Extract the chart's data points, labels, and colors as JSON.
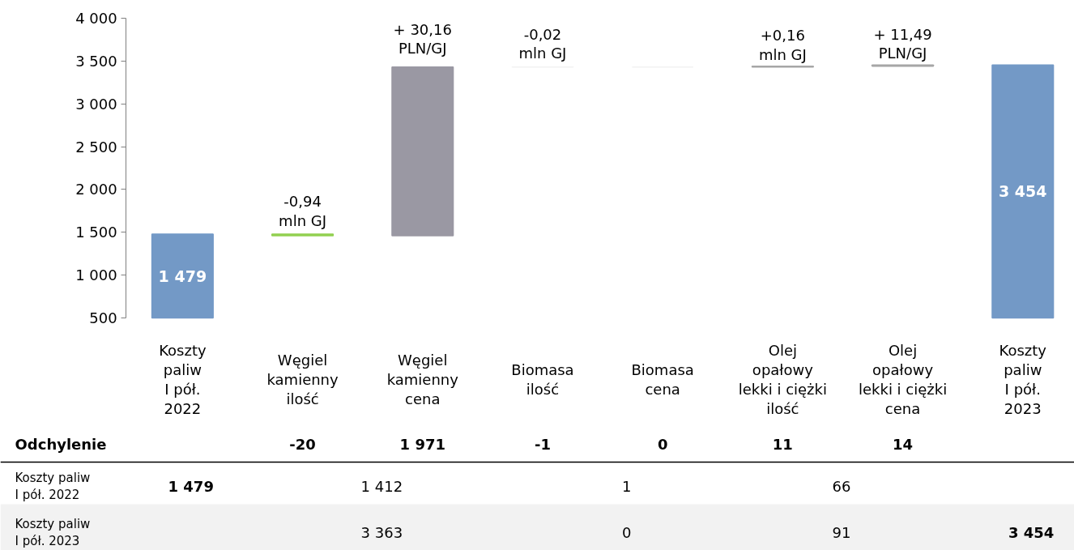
{
  "chart_data": {
    "type": "bar",
    "categories": [
      "Koszty\npaliw\nI pół.\n2022",
      "Węgiel\nkamienny\nilość",
      "Węgiel\nkamienny\ncena",
      "Biomasa\nilość",
      "Biomasa\ncena",
      "Olej\nopałowy\nlekki i ciężki\nilość",
      "Olej\nopałowy\nlekki i ciężki\ncena",
      "Koszty\npaliw\nI pół.\n2023"
    ],
    "values": [
      1479,
      -20,
      1971,
      -1,
      0,
      11,
      14,
      3454
    ],
    "base": [
      null,
      1479,
      1459,
      3430,
      3429,
      3429,
      3440,
      null
    ],
    "colors": [
      "#7399c6",
      "#92d050",
      "#9a98a3",
      "#f2f2f2",
      "#f2f2f2",
      "#a6a6a6",
      "#a6a6a6",
      "#7399c6"
    ],
    "value_labels": [
      "1 479",
      null,
      null,
      null,
      null,
      null,
      null,
      "3 454"
    ],
    "ylim": [
      500,
      4000
    ],
    "yticks": [
      {
        "value": 500,
        "label": "500"
      },
      {
        "value": 1000,
        "label": "1 000"
      },
      {
        "value": 1500,
        "label": "1 500"
      },
      {
        "value": 2000,
        "label": "2 000"
      },
      {
        "value": 2500,
        "label": "2 500"
      },
      {
        "value": 3000,
        "label": "3 000"
      },
      {
        "value": 3500,
        "label": "3 500"
      },
      {
        "value": 4000,
        "label": "4 000"
      }
    ],
    "annotations": [
      "-0,94\nmln GJ",
      "+ 30,16\nPLN/GJ",
      "-0,02\nmln GJ",
      "+0,16\nmln GJ",
      "+ 11,49\nPLN/GJ",
      "Odchylenie",
      "-20",
      "1 971",
      "-1",
      "0",
      "11",
      "14",
      "Koszty paliw\nI pół. 2022",
      "1 479",
      "1 412",
      "1",
      "66",
      "Koszty paliw\nI pół. 2023",
      "3 363",
      "0",
      "91",
      "3 454"
    ]
  }
}
